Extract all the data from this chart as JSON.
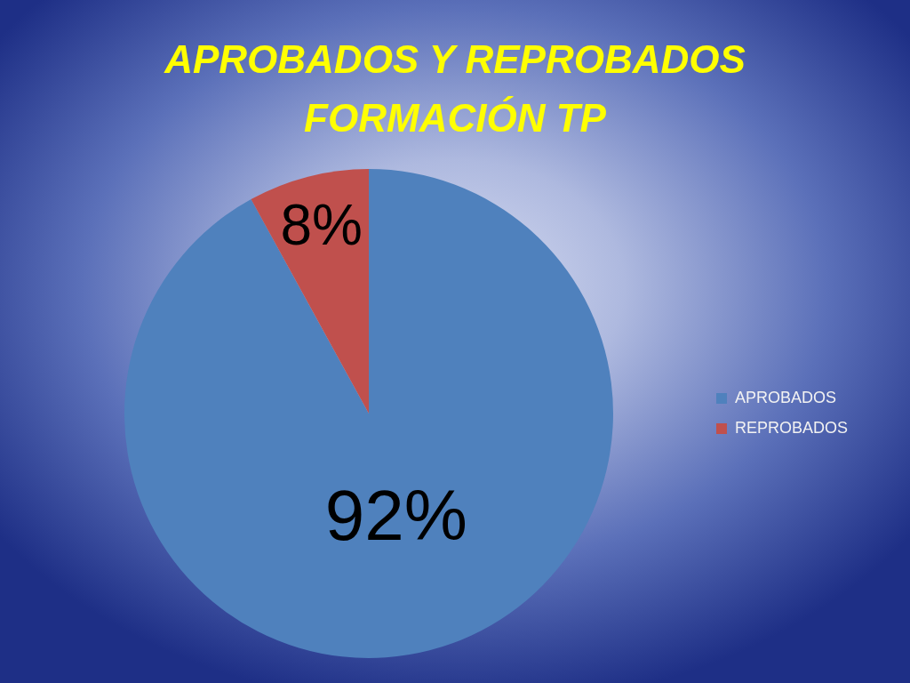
{
  "chart_data": {
    "type": "pie",
    "title": "APROBADOS Y REPROBADOS FORMACIÓN TP",
    "categories": [
      "APROBADOS",
      "REPROBADOS"
    ],
    "values": [
      92,
      8
    ],
    "colors": [
      "#4f81bd",
      "#c0504d"
    ],
    "value_labels": [
      "92%",
      "8%"
    ],
    "legend": "right"
  }
}
